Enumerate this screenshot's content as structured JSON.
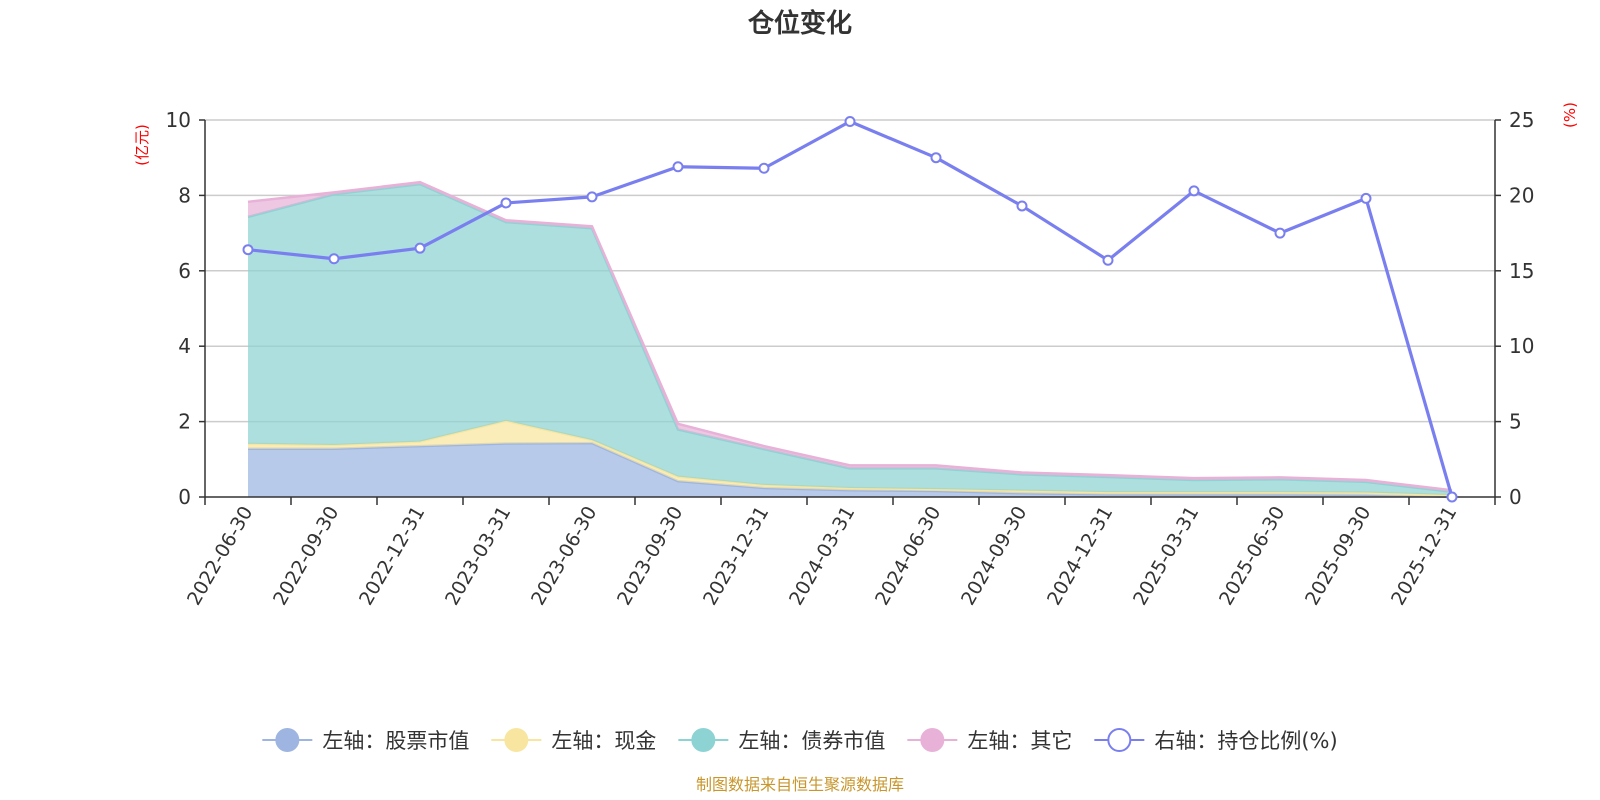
{
  "chart_data": {
    "type": "area",
    "title": "仓位变化",
    "categories": [
      "2022-06-30",
      "2022-09-30",
      "2022-12-31",
      "2023-03-31",
      "2023-06-30",
      "2023-09-30",
      "2023-12-31",
      "2024-03-31",
      "2024-06-30",
      "2024-09-30",
      "2024-12-31",
      "2025-03-31",
      "2025-06-30",
      "2025-09-30",
      "2025-12-31"
    ],
    "left_axis": {
      "unit": "(亿元)",
      "ylim": [
        0,
        10
      ],
      "ticks": [
        "0",
        "2",
        "4",
        "6",
        "8",
        "10"
      ]
    },
    "right_axis": {
      "unit": "(%)",
      "ylim": [
        0,
        25
      ],
      "ticks": [
        "0",
        "5",
        "10",
        "15",
        "20",
        "25"
      ]
    },
    "series": [
      {
        "name": "左轴：股票市值",
        "axis": "left",
        "kind": "stacked-area",
        "color": "#9db5e0",
        "values": [
          1.28,
          1.28,
          1.35,
          1.42,
          1.43,
          0.42,
          0.24,
          0.18,
          0.16,
          0.1,
          0.07,
          0.07,
          0.07,
          0.06,
          0.0
        ]
      },
      {
        "name": "左轴：现金",
        "axis": "left",
        "kind": "stacked-area",
        "color": "#f8e6a0",
        "values": [
          0.13,
          0.1,
          0.12,
          0.6,
          0.08,
          0.12,
          0.08,
          0.06,
          0.05,
          0.07,
          0.06,
          0.06,
          0.06,
          0.06,
          0.05
        ]
      },
      {
        "name": "左轴：债券市值",
        "axis": "left",
        "kind": "stacked-area",
        "color": "#8ed3d3",
        "values": [
          6.02,
          6.65,
          6.83,
          5.27,
          5.62,
          1.25,
          0.95,
          0.52,
          0.55,
          0.43,
          0.4,
          0.32,
          0.34,
          0.28,
          0.09
        ]
      },
      {
        "name": "左轴：其它",
        "axis": "left",
        "kind": "stacked-area",
        "color": "#e8b2d8",
        "values": [
          0.4,
          0.05,
          0.05,
          0.05,
          0.05,
          0.15,
          0.08,
          0.08,
          0.08,
          0.05,
          0.05,
          0.05,
          0.05,
          0.05,
          0.04
        ]
      },
      {
        "name": "右轴：持仓比例(%)",
        "axis": "right",
        "kind": "line",
        "color": "#7a7ff0",
        "values": [
          16.4,
          15.8,
          16.5,
          19.5,
          19.9,
          21.9,
          21.8,
          24.9,
          22.5,
          19.3,
          15.7,
          20.3,
          17.5,
          19.8,
          0.0
        ]
      }
    ],
    "legend_position": "bottom",
    "grid": true
  },
  "source_note": "制图数据来自恒生聚源数据库"
}
